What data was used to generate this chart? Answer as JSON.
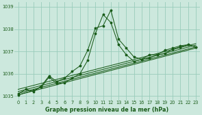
{
  "title": "Graphe pression niveau de la mer (hPa)",
  "bg_color": "#cce8dd",
  "grid_color": "#99ccbb",
  "line_color": "#1a5c1a",
  "xlim": [
    -0.5,
    23.5
  ],
  "ylim": [
    1034.8,
    1039.2
  ],
  "yticks": [
    1035,
    1036,
    1037,
    1038,
    1039
  ],
  "xticks": [
    0,
    1,
    2,
    3,
    4,
    5,
    6,
    7,
    8,
    9,
    10,
    11,
    12,
    13,
    14,
    15,
    16,
    17,
    18,
    19,
    20,
    21,
    22,
    23
  ],
  "series1": {
    "x": [
      0,
      1,
      2,
      3,
      4,
      5,
      6,
      7,
      8,
      9,
      10,
      11,
      12,
      13,
      14,
      15,
      16,
      17,
      18,
      19,
      20,
      21,
      22,
      23
    ],
    "y": [
      1035.1,
      1035.3,
      1035.2,
      1035.45,
      1035.9,
      1035.65,
      1035.8,
      1036.1,
      1036.35,
      1037.05,
      1038.05,
      1038.15,
      1038.85,
      1037.55,
      1037.15,
      1036.75,
      1036.65,
      1036.85,
      1036.85,
      1037.05,
      1037.15,
      1037.25,
      1037.3,
      1037.2
    ]
  },
  "series2": {
    "x": [
      0,
      2,
      3,
      4,
      5,
      6,
      7,
      8,
      9,
      10,
      11,
      12,
      13,
      14,
      15,
      16,
      17,
      18,
      19,
      20,
      21,
      22,
      23
    ],
    "y": [
      1035.05,
      1035.25,
      1035.4,
      1035.85,
      1035.55,
      1035.6,
      1035.8,
      1036.0,
      1036.6,
      1037.8,
      1038.65,
      1038.3,
      1037.3,
      1036.85,
      1036.55,
      1036.65,
      1036.7,
      1036.85,
      1036.9,
      1037.1,
      1037.2,
      1037.3,
      1037.2
    ]
  },
  "linear_lines": [
    {
      "x0": 0,
      "y0": 1035.05,
      "x1": 23,
      "y1": 1037.15
    },
    {
      "x0": 0,
      "y0": 1035.12,
      "x1": 23,
      "y1": 1037.2
    },
    {
      "x0": 0,
      "y0": 1035.2,
      "x1": 23,
      "y1": 1037.28
    },
    {
      "x0": 0,
      "y0": 1035.3,
      "x1": 23,
      "y1": 1037.35
    }
  ]
}
